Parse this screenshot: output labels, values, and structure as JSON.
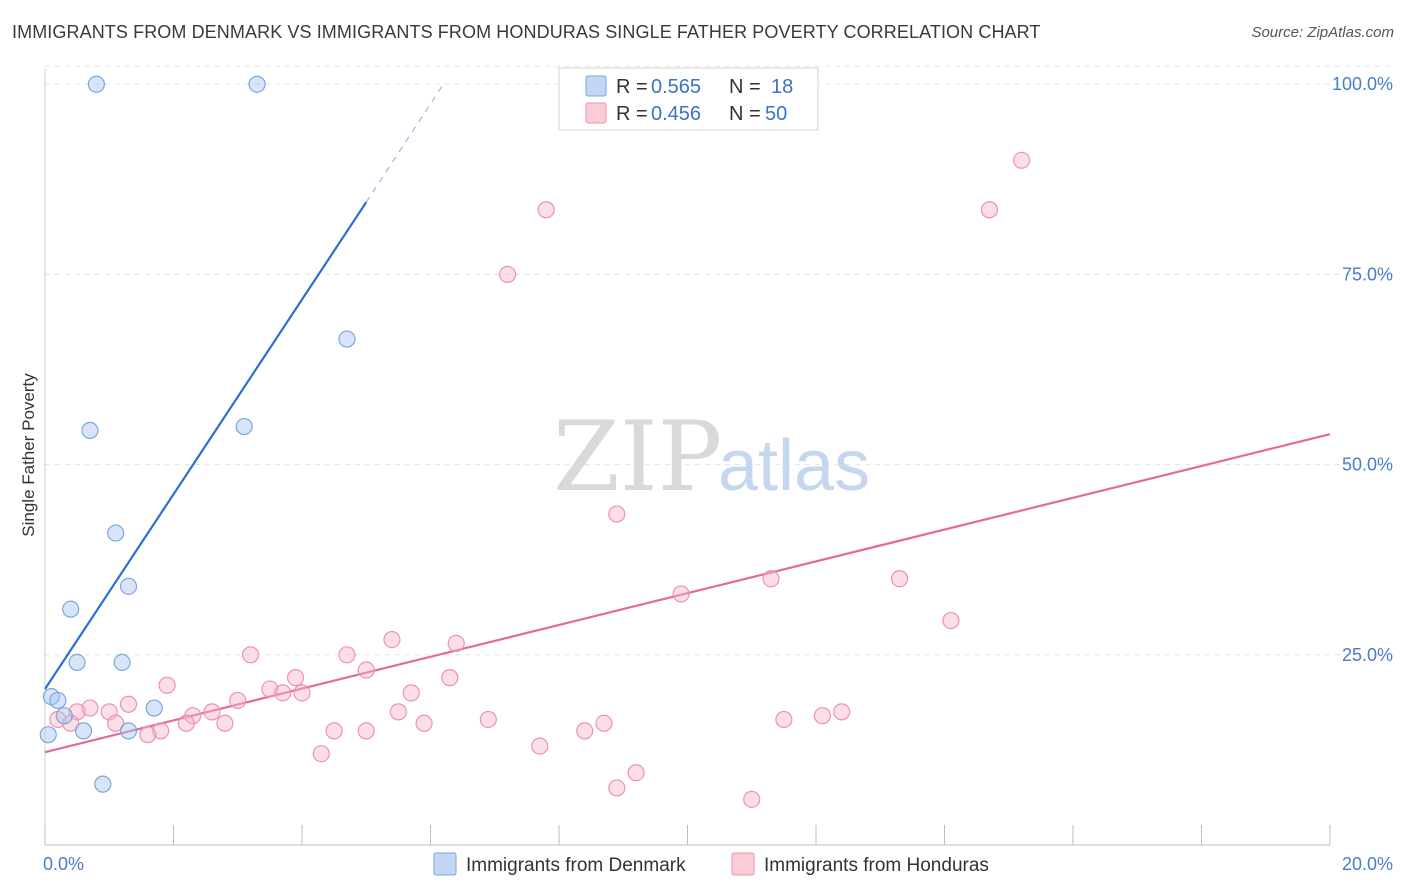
{
  "header": {
    "title": "IMMIGRANTS FROM DENMARK VS IMMIGRANTS FROM HONDURAS SINGLE FATHER POVERTY CORRELATION CHART",
    "source": "Source: ZipAtlas.com"
  },
  "watermark": {
    "zip": "ZIP",
    "atlas": "atlas"
  },
  "legend_box": {
    "rows": [
      {
        "r_label": "R = ",
        "r_value": "0.565",
        "n_label": "N = ",
        "n_value": "18",
        "color": "#a9c6ef"
      },
      {
        "r_label": "R = ",
        "r_value": "0.456",
        "n_label": "N = ",
        "n_value": "50",
        "color": "#f6b6c8"
      }
    ]
  },
  "chart_data": {
    "type": "scatter",
    "title": "IMMIGRANTS FROM DENMARK VS IMMIGRANTS FROM HONDURAS SINGLE FATHER POVERTY CORRELATION CHART",
    "xlabel": "",
    "ylabel": "Single Father Poverty",
    "xlim": [
      0,
      20
    ],
    "ylim": [
      0,
      102
    ],
    "x_tick_labels": [
      "0.0%",
      "20.0%"
    ],
    "y_ticks": [
      25,
      50,
      75,
      100
    ],
    "y_tick_labels": [
      "25.0%",
      "50.0%",
      "75.0%",
      "100.0%"
    ],
    "grid": true,
    "legend_position": "bottom",
    "series": [
      {
        "name": "Immigrants from Denmark",
        "color": "#a9c6ef",
        "stroke": "#7aa6e0",
        "line_color": "#2f6fcd",
        "trend": {
          "x_start": 0.0,
          "y_start": 20.5,
          "x_solid_end": 5.0,
          "y_solid_end": 84.5,
          "x_dash_end": 6.2,
          "y_dash_end": 100.0
        },
        "points": [
          [
            0.8,
            100.0
          ],
          [
            3.3,
            100.0
          ],
          [
            4.7,
            66.5
          ],
          [
            0.7,
            54.5
          ],
          [
            3.1,
            55.0
          ],
          [
            1.1,
            41.0
          ],
          [
            1.3,
            34.0
          ],
          [
            0.4,
            31.0
          ],
          [
            0.5,
            24.0
          ],
          [
            1.2,
            24.0
          ],
          [
            0.1,
            19.5
          ],
          [
            0.2,
            19.0
          ],
          [
            1.7,
            18.0
          ],
          [
            0.3,
            17.0
          ],
          [
            0.6,
            15.0
          ],
          [
            1.3,
            15.0
          ],
          [
            0.9,
            8.0
          ],
          [
            0.05,
            14.5
          ]
        ]
      },
      {
        "name": "Immigrants from Honduras",
        "color": "#f6b6c8",
        "stroke": "#ec93ad",
        "line_color": "#e46b93",
        "trend": {
          "x_start": 0.0,
          "y_start": 12.2,
          "x_end": 20.0,
          "y_end": 54.0
        },
        "points": [
          [
            15.2,
            90.0
          ],
          [
            14.7,
            83.5
          ],
          [
            7.8,
            83.5
          ],
          [
            7.2,
            75.0
          ],
          [
            8.9,
            43.5
          ],
          [
            11.3,
            35.0
          ],
          [
            13.3,
            35.0
          ],
          [
            9.9,
            33.0
          ],
          [
            14.1,
            29.5
          ],
          [
            5.4,
            27.0
          ],
          [
            6.4,
            26.5
          ],
          [
            3.2,
            25.0
          ],
          [
            4.7,
            25.0
          ],
          [
            5.0,
            23.0
          ],
          [
            1.9,
            21.0
          ],
          [
            3.9,
            22.0
          ],
          [
            3.5,
            20.5
          ],
          [
            6.3,
            22.0
          ],
          [
            5.7,
            20.0
          ],
          [
            3.7,
            20.0
          ],
          [
            3.0,
            19.0
          ],
          [
            4.0,
            20.0
          ],
          [
            1.3,
            18.5
          ],
          [
            0.7,
            18.0
          ],
          [
            1.0,
            17.5
          ],
          [
            2.6,
            17.5
          ],
          [
            2.3,
            17.0
          ],
          [
            0.5,
            17.5
          ],
          [
            0.2,
            16.5
          ],
          [
            2.2,
            16.0
          ],
          [
            1.1,
            16.0
          ],
          [
            0.4,
            16.0
          ],
          [
            5.5,
            17.5
          ],
          [
            2.8,
            16.0
          ],
          [
            6.9,
            16.5
          ],
          [
            5.9,
            16.0
          ],
          [
            8.7,
            16.0
          ],
          [
            11.5,
            16.5
          ],
          [
            12.1,
            17.0
          ],
          [
            12.4,
            17.5
          ],
          [
            4.5,
            15.0
          ],
          [
            5.0,
            15.0
          ],
          [
            1.8,
            15.0
          ],
          [
            1.6,
            14.5
          ],
          [
            8.4,
            15.0
          ],
          [
            7.7,
            13.0
          ],
          [
            4.3,
            12.0
          ],
          [
            9.2,
            9.5
          ],
          [
            8.9,
            7.5
          ],
          [
            11.0,
            6.0
          ]
        ]
      }
    ]
  }
}
